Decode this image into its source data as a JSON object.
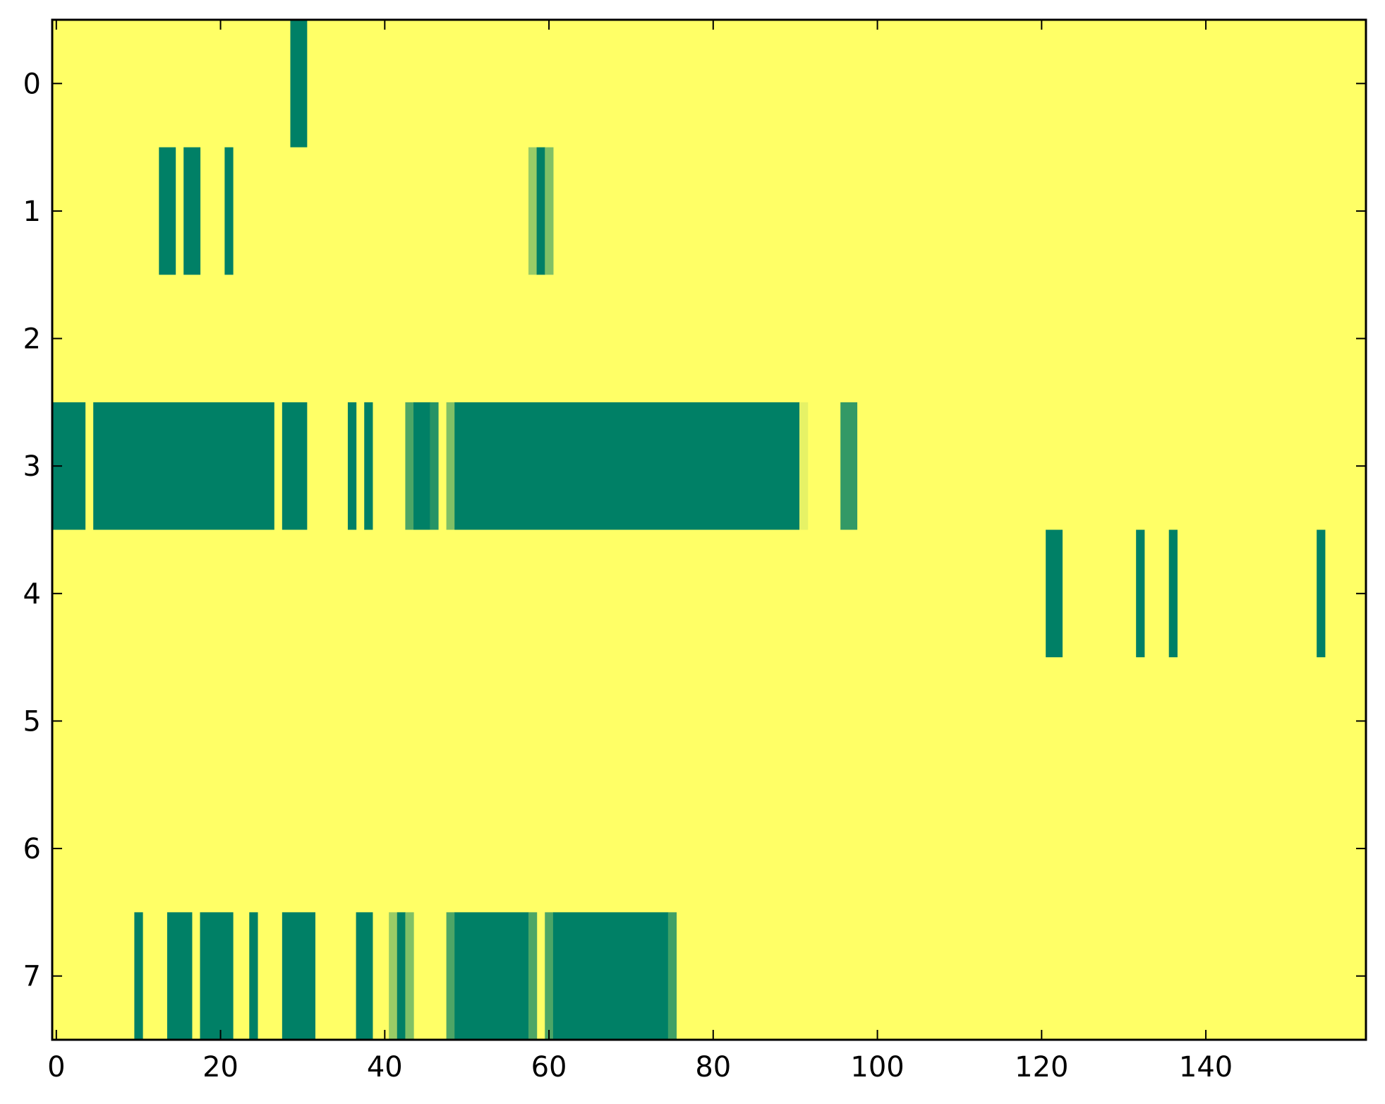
{
  "chart_data": {
    "type": "heatmap",
    "title": "",
    "xlabel": "",
    "ylabel": "",
    "xlim": [
      -0.5,
      159.5
    ],
    "ylim": [
      7.5,
      -0.5
    ],
    "x_ticks": [
      0,
      20,
      40,
      60,
      80,
      100,
      120,
      140
    ],
    "y_ticks": [
      0,
      1,
      2,
      3,
      4,
      5,
      6,
      7
    ],
    "x_tick_labels": [
      "0",
      "20",
      "40",
      "60",
      "80",
      "100",
      "120",
      "140"
    ],
    "y_tick_labels": [
      "0",
      "1",
      "2",
      "3",
      "4",
      "5",
      "6",
      "7"
    ],
    "n_rows": 8,
    "n_cols": 160,
    "colormap": "summer_r",
    "value_range": [
      0,
      1
    ],
    "background_value": 0,
    "grid": false,
    "colors": {
      "low": "#ffff66",
      "high": "#008066"
    },
    "rows": [
      {
        "row": 0,
        "segments": [
          [
            29,
            30,
            1.0
          ]
        ]
      },
      {
        "row": 1,
        "segments": [
          [
            13,
            14,
            1.0
          ],
          [
            16,
            17,
            1.0
          ],
          [
            21,
            21,
            1.0
          ],
          [
            58,
            58,
            0.4
          ],
          [
            59,
            59,
            1.0
          ],
          [
            60,
            60,
            0.5
          ]
        ]
      },
      {
        "row": 2,
        "segments": []
      },
      {
        "row": 3,
        "segments": [
          [
            0,
            3,
            1.0
          ],
          [
            5,
            26,
            1.0
          ],
          [
            28,
            30,
            1.0
          ],
          [
            36,
            36,
            1.0
          ],
          [
            38,
            38,
            1.0
          ],
          [
            43,
            43,
            0.7
          ],
          [
            44,
            45,
            1.0
          ],
          [
            46,
            46,
            0.85
          ],
          [
            48,
            48,
            0.5
          ],
          [
            49,
            90,
            1.0
          ],
          [
            91,
            91,
            0.1
          ],
          [
            96,
            97,
            0.8
          ]
        ]
      },
      {
        "row": 4,
        "segments": [
          [
            121,
            122,
            1.0
          ],
          [
            132,
            132,
            1.0
          ],
          [
            136,
            136,
            1.0
          ],
          [
            154,
            154,
            1.0
          ]
        ]
      },
      {
        "row": 5,
        "segments": []
      },
      {
        "row": 6,
        "segments": []
      },
      {
        "row": 7,
        "segments": [
          [
            10,
            10,
            1.0
          ],
          [
            14,
            16,
            1.0
          ],
          [
            18,
            21,
            1.0
          ],
          [
            24,
            24,
            1.0
          ],
          [
            28,
            31,
            1.0
          ],
          [
            37,
            38,
            1.0
          ],
          [
            41,
            41,
            0.4
          ],
          [
            42,
            42,
            1.0
          ],
          [
            43,
            43,
            0.5
          ],
          [
            48,
            48,
            0.7
          ],
          [
            49,
            57,
            1.0
          ],
          [
            58,
            58,
            0.7
          ],
          [
            60,
            60,
            0.7
          ],
          [
            61,
            74,
            1.0
          ],
          [
            75,
            75,
            0.75
          ]
        ]
      }
    ]
  }
}
